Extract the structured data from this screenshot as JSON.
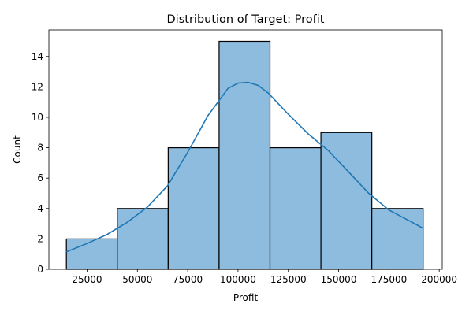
{
  "chart_data": {
    "type": "histogram",
    "title": "Distribution of Target: Profit",
    "xlabel": "Profit",
    "ylabel": "Count",
    "xlim": [
      6000,
      201500
    ],
    "ylim": [
      0,
      15.75
    ],
    "xticks": [
      25000,
      50000,
      75000,
      100000,
      125000,
      150000,
      175000,
      200000
    ],
    "yticks": [
      0,
      2,
      4,
      6,
      8,
      10,
      12,
      14
    ],
    "bins": [
      {
        "x0": 14700,
        "x1": 40000,
        "count": 2
      },
      {
        "x0": 40000,
        "x1": 65300,
        "count": 4
      },
      {
        "x0": 65300,
        "x1": 90600,
        "count": 8
      },
      {
        "x0": 90600,
        "x1": 115900,
        "count": 15
      },
      {
        "x0": 115900,
        "x1": 141200,
        "count": 8
      },
      {
        "x0": 141200,
        "x1": 166500,
        "count": 9
      },
      {
        "x0": 166500,
        "x1": 192000,
        "count": 4
      }
    ],
    "kde": {
      "x": [
        14700,
        25000,
        35000,
        45000,
        55000,
        65000,
        75000,
        85000,
        95000,
        100000,
        105000,
        110000,
        115000,
        125000,
        135000,
        145000,
        155000,
        165000,
        175000,
        185000,
        192000
      ],
      "y": [
        1.15,
        1.7,
        2.3,
        3.1,
        4.1,
        5.5,
        7.7,
        10.1,
        11.9,
        12.25,
        12.3,
        12.1,
        11.6,
        10.2,
        8.9,
        7.8,
        6.4,
        5.0,
        3.9,
        3.2,
        2.7
      ]
    },
    "colors": {
      "bar_fill": "#8ebcde",
      "bar_edge": "#000000",
      "kde_line": "#1f77b4"
    },
    "grid": false,
    "legend": "none"
  }
}
